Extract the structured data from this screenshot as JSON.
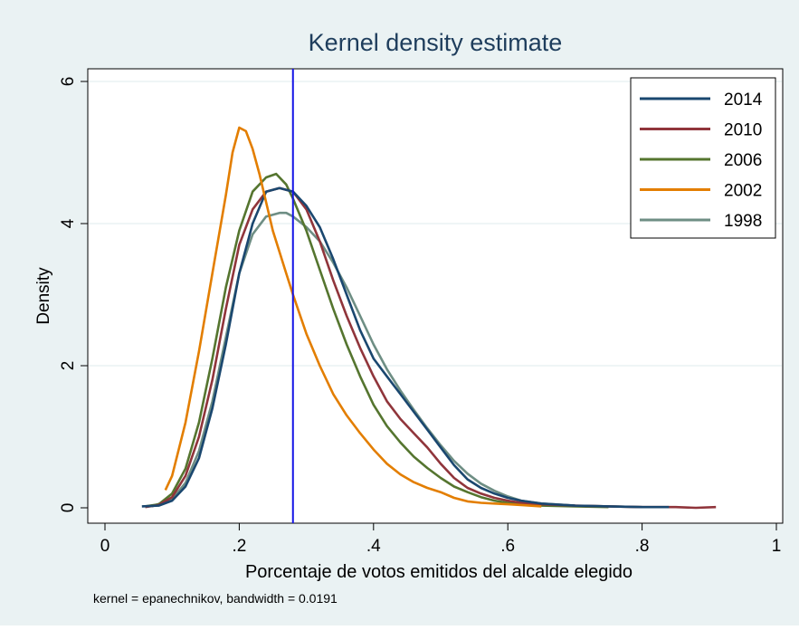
{
  "chart_data": {
    "type": "line",
    "title": "Kernel density estimate",
    "xlabel": "Porcentaje de votos emitidos del alcalde elegido",
    "ylabel": "Density",
    "note": "kernel = epanechnikov, bandwidth = 0.0191",
    "xlim": [
      0,
      1
    ],
    "ylim": [
      0,
      6
    ],
    "xticks": [
      0,
      0.2,
      0.4,
      0.6,
      0.8,
      1
    ],
    "xtick_labels": [
      "0",
      ".2",
      ".4",
      ".6",
      ".8",
      "1"
    ],
    "yticks": [
      0,
      2,
      4,
      6
    ],
    "ytick_labels": [
      "0",
      "2",
      "4",
      "6"
    ],
    "grid": true,
    "legend_position": "top-right",
    "reference_line": {
      "x": 0.28,
      "color": "#1414e6"
    },
    "colors": {
      "background": "#eaf2f3",
      "plot_background": "#ffffff",
      "grid": "#eaf2f3",
      "title": "#1e3d5c"
    },
    "series": [
      {
        "name": "2014",
        "color": "#1a476f",
        "x": [
          0.055,
          0.08,
          0.1,
          0.12,
          0.14,
          0.16,
          0.18,
          0.2,
          0.22,
          0.24,
          0.26,
          0.28,
          0.3,
          0.32,
          0.34,
          0.36,
          0.38,
          0.4,
          0.42,
          0.44,
          0.46,
          0.48,
          0.5,
          0.52,
          0.54,
          0.56,
          0.58,
          0.6,
          0.62,
          0.65,
          0.7,
          0.75,
          0.8,
          0.84
        ],
        "y": [
          0.02,
          0.03,
          0.1,
          0.3,
          0.7,
          1.4,
          2.3,
          3.3,
          4.0,
          4.45,
          4.5,
          4.45,
          4.25,
          3.95,
          3.5,
          3.0,
          2.5,
          2.1,
          1.85,
          1.6,
          1.35,
          1.1,
          0.85,
          0.6,
          0.4,
          0.28,
          0.2,
          0.14,
          0.1,
          0.06,
          0.03,
          0.02,
          0.01,
          0.01
        ]
      },
      {
        "name": "2010",
        "color": "#90353b",
        "x": [
          0.06,
          0.08,
          0.1,
          0.12,
          0.14,
          0.16,
          0.18,
          0.2,
          0.22,
          0.24,
          0.26,
          0.28,
          0.3,
          0.32,
          0.34,
          0.36,
          0.38,
          0.4,
          0.42,
          0.44,
          0.46,
          0.48,
          0.5,
          0.52,
          0.54,
          0.56,
          0.58,
          0.6,
          0.62,
          0.65,
          0.7,
          0.75,
          0.8,
          0.85,
          0.88,
          0.91
        ],
        "y": [
          0.01,
          0.04,
          0.15,
          0.45,
          1.0,
          1.8,
          2.8,
          3.7,
          4.2,
          4.45,
          4.5,
          4.45,
          4.2,
          3.75,
          3.2,
          2.7,
          2.25,
          1.85,
          1.5,
          1.25,
          1.05,
          0.85,
          0.62,
          0.42,
          0.28,
          0.2,
          0.14,
          0.1,
          0.07,
          0.05,
          0.03,
          0.02,
          0.01,
          0.01,
          0.0,
          0.01
        ]
      },
      {
        "name": "2006",
        "color": "#55752f",
        "x": [
          0.06,
          0.08,
          0.1,
          0.12,
          0.14,
          0.16,
          0.18,
          0.2,
          0.22,
          0.24,
          0.255,
          0.27,
          0.28,
          0.3,
          0.32,
          0.34,
          0.36,
          0.38,
          0.4,
          0.42,
          0.44,
          0.46,
          0.48,
          0.5,
          0.52,
          0.54,
          0.56,
          0.58,
          0.6,
          0.62,
          0.65,
          0.7,
          0.75
        ],
        "y": [
          0.02,
          0.05,
          0.2,
          0.55,
          1.2,
          2.1,
          3.1,
          3.9,
          4.45,
          4.65,
          4.7,
          4.55,
          4.35,
          3.9,
          3.35,
          2.8,
          2.3,
          1.85,
          1.45,
          1.15,
          0.92,
          0.72,
          0.56,
          0.42,
          0.3,
          0.22,
          0.15,
          0.1,
          0.07,
          0.05,
          0.03,
          0.02,
          0.01
        ]
      },
      {
        "name": "2002",
        "color": "#e37e00",
        "x": [
          0.09,
          0.1,
          0.12,
          0.14,
          0.16,
          0.18,
          0.19,
          0.2,
          0.21,
          0.22,
          0.23,
          0.24,
          0.25,
          0.26,
          0.27,
          0.28,
          0.3,
          0.32,
          0.34,
          0.36,
          0.38,
          0.4,
          0.42,
          0.44,
          0.46,
          0.48,
          0.5,
          0.52,
          0.54,
          0.56,
          0.58,
          0.6,
          0.62,
          0.65
        ],
        "y": [
          0.25,
          0.45,
          1.2,
          2.2,
          3.3,
          4.4,
          5.0,
          5.35,
          5.3,
          5.05,
          4.7,
          4.3,
          3.9,
          3.6,
          3.3,
          3.0,
          2.45,
          2.0,
          1.6,
          1.3,
          1.05,
          0.82,
          0.62,
          0.47,
          0.36,
          0.28,
          0.22,
          0.14,
          0.09,
          0.07,
          0.06,
          0.05,
          0.04,
          0.02
        ]
      },
      {
        "name": "1998",
        "color": "#6e8e84",
        "x": [
          0.07,
          0.1,
          0.12,
          0.14,
          0.16,
          0.18,
          0.2,
          0.22,
          0.24,
          0.26,
          0.27,
          0.28,
          0.3,
          0.32,
          0.34,
          0.36,
          0.38,
          0.4,
          0.42,
          0.44,
          0.46,
          0.48,
          0.5,
          0.52,
          0.54,
          0.56,
          0.58,
          0.6,
          0.62,
          0.65,
          0.7,
          0.75,
          0.8
        ],
        "y": [
          0.02,
          0.12,
          0.35,
          0.8,
          1.5,
          2.4,
          3.3,
          3.85,
          4.1,
          4.15,
          4.15,
          4.1,
          3.95,
          3.75,
          3.45,
          3.1,
          2.7,
          2.3,
          1.95,
          1.65,
          1.38,
          1.12,
          0.88,
          0.66,
          0.48,
          0.34,
          0.24,
          0.16,
          0.1,
          0.06,
          0.03,
          0.02,
          0.01
        ]
      }
    ]
  }
}
